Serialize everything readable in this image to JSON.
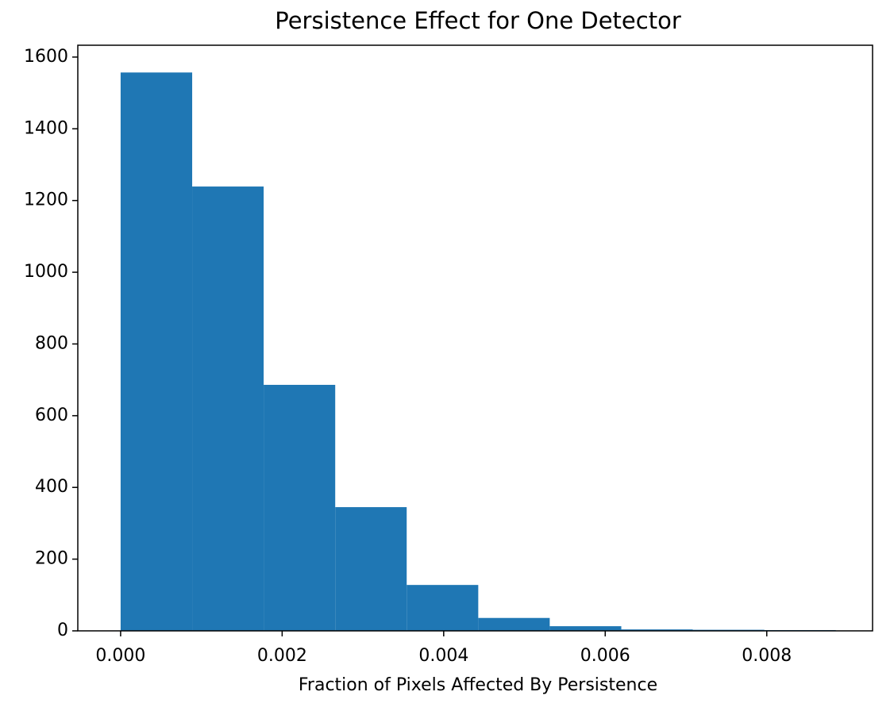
{
  "chart_data": {
    "type": "histogram",
    "title": "Persistence Effect for One Detector",
    "xlabel": "Fraction of Pixels Affected By Persistence",
    "bins": [
      0,
      0.000886,
      0.001771,
      0.002657,
      0.003542,
      0.004428,
      0.005313,
      0.006199,
      0.007084,
      0.00797,
      0.008855
    ],
    "counts": [
      1557,
      1239,
      686,
      345,
      128,
      36,
      13,
      4,
      3,
      2
    ],
    "color": "#1f77b4",
    "xlim": [
      -0.00053,
      0.00931
    ],
    "xticks": [
      {
        "value": 0,
        "label": "0.000"
      },
      {
        "value": 0.002,
        "label": "0.002"
      },
      {
        "value": 0.004,
        "label": "0.004"
      },
      {
        "value": 0.006,
        "label": "0.006"
      },
      {
        "value": 0.008,
        "label": "0.008"
      }
    ],
    "ylim": [
      0,
      1633
    ],
    "yticks": [
      0,
      200,
      400,
      600,
      800,
      1000,
      1200,
      1400,
      1600
    ]
  }
}
